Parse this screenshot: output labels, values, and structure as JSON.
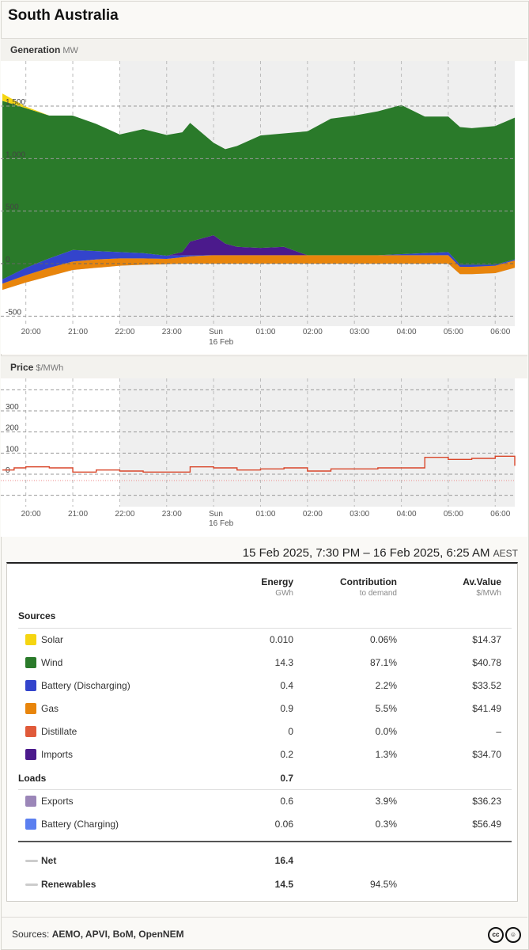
{
  "region_title": "South Australia",
  "generation": {
    "label": "Generation",
    "unit": "MW"
  },
  "price": {
    "label": "Price",
    "unit": "$/MWh"
  },
  "time_labels": [
    "20:00",
    "21:00",
    "22:00",
    "23:00",
    "Sun",
    "01:00",
    "02:00",
    "03:00",
    "04:00",
    "05:00",
    "06:00"
  ],
  "day_label": "16 Feb",
  "date_range": "15 Feb 2025, 7:30 PM – 16 Feb 2025, 6:25 AM",
  "timezone": "AEST",
  "table": {
    "col_energy": "Energy",
    "col_energy_unit": "GWh",
    "col_contrib": "Contribution",
    "col_contrib_unit": "to demand",
    "col_value": "Av.Value",
    "col_value_unit": "$/MWh",
    "sources_label": "Sources",
    "sources": [
      {
        "name": "Solar",
        "energy": "0.010",
        "contribution": "0.06%",
        "value": "$14.37",
        "color": "#f5d511"
      },
      {
        "name": "Wind",
        "energy": "14.3",
        "contribution": "87.1%",
        "value": "$40.78",
        "color": "#2a7a2a"
      },
      {
        "name": "Battery (Discharging)",
        "energy": "0.4",
        "contribution": "2.2%",
        "value": "$33.52",
        "color": "#3344cc"
      },
      {
        "name": "Gas",
        "energy": "0.9",
        "contribution": "5.5%",
        "value": "$41.49",
        "color": "#e8850c"
      },
      {
        "name": "Distillate",
        "energy": "0",
        "contribution": "0.0%",
        "value": "–",
        "color": "#e05a3a"
      },
      {
        "name": "Imports",
        "energy": "0.2",
        "contribution": "1.3%",
        "value": "$34.70",
        "color": "#4b1a8c"
      }
    ],
    "loads_label": "Loads",
    "loads_total": "0.7",
    "loads": [
      {
        "name": "Exports",
        "energy": "0.6",
        "contribution": "3.9%",
        "value": "$36.23",
        "color": "#9b86b8"
      },
      {
        "name": "Battery (Charging)",
        "energy": "0.06",
        "contribution": "0.3%",
        "value": "$56.49",
        "color": "#5b7ff0"
      }
    ],
    "net_label": "Net",
    "net_value": "16.4",
    "renew_label": "Renewables",
    "renew_value": "14.5",
    "renew_contrib": "94.5%"
  },
  "footer": {
    "prefix": "Sources:",
    "sources": "AEMO, APVI, BoM, OpenNEM",
    "cc_icon": "cc",
    "by_icon": "person"
  },
  "chart_data": [
    {
      "type": "area",
      "title": "Generation",
      "ylabel": "MW",
      "ylim": [
        -500,
        1500
      ],
      "y_ticks": [
        -500,
        0,
        500,
        "1,000",
        "1,500"
      ],
      "x_ticks": [
        "20:00",
        "21:00",
        "22:00",
        "23:00",
        "Sun 16 Feb",
        "01:00",
        "02:00",
        "03:00",
        "04:00",
        "05:00",
        "06:00"
      ],
      "x": [
        "19:30",
        "20:00",
        "20:30",
        "21:00",
        "21:30",
        "22:00",
        "22:30",
        "23:00",
        "23:20",
        "23:30",
        "00:00",
        "00:15",
        "00:30",
        "01:00",
        "01:30",
        "02:00",
        "02:30",
        "03:00",
        "03:30",
        "04:00",
        "04:30",
        "05:00",
        "05:15",
        "05:30",
        "06:00",
        "06:25"
      ],
      "series": [
        {
          "name": "Solar",
          "color": "#f5d511",
          "values": [
            70,
            15,
            0,
            0,
            0,
            0,
            0,
            0,
            0,
            0,
            0,
            0,
            0,
            0,
            0,
            0,
            0,
            0,
            0,
            0,
            0,
            0,
            0,
            0,
            0,
            0
          ]
        },
        {
          "name": "Wind",
          "color": "#2a7a2a",
          "values": [
            1700,
            1520,
            1360,
            1280,
            1210,
            1120,
            1180,
            1150,
            1140,
            1130,
            880,
            900,
            960,
            1070,
            1080,
            1180,
            1300,
            1330,
            1370,
            1420,
            1300,
            1290,
            1310,
            1300,
            1320,
            1350
          ]
        },
        {
          "name": "Battery (Discharging)",
          "color": "#3344cc",
          "values": [
            40,
            70,
            90,
            110,
            80,
            60,
            50,
            30,
            20,
            10,
            0,
            0,
            0,
            0,
            0,
            0,
            0,
            0,
            0,
            10,
            20,
            30,
            20,
            20,
            10,
            10
          ]
        },
        {
          "name": "Gas",
          "color": "#e8850c",
          "values": [
            60,
            70,
            80,
            80,
            80,
            70,
            60,
            50,
            60,
            70,
            80,
            80,
            80,
            80,
            80,
            80,
            80,
            80,
            80,
            80,
            80,
            80,
            70,
            70,
            70,
            70
          ]
        },
        {
          "name": "Imports",
          "color": "#4b1a8c",
          "values": [
            0,
            0,
            0,
            0,
            0,
            0,
            0,
            0,
            30,
            130,
            190,
            110,
            80,
            70,
            80,
            0,
            0,
            0,
            0,
            0,
            0,
            0,
            0,
            0,
            0,
            0
          ]
        },
        {
          "name": "Exports",
          "color": "#9b86b8",
          "values": [
            -250,
            -180,
            -120,
            -60,
            -40,
            -20,
            -10,
            -5,
            0,
            0,
            0,
            0,
            0,
            0,
            0,
            0,
            0,
            0,
            0,
            0,
            0,
            0,
            -100,
            -100,
            -90,
            -40
          ]
        }
      ]
    },
    {
      "type": "line",
      "title": "Price",
      "ylabel": "$/MWh",
      "ylim": [
        -150,
        400
      ],
      "y_ticks": [
        0,
        100,
        200,
        300
      ],
      "x_ticks": [
        "20:00",
        "21:00",
        "22:00",
        "23:00",
        "Sun 16 Feb",
        "01:00",
        "02:00",
        "03:00",
        "04:00",
        "05:00",
        "06:00"
      ],
      "x": [
        "19:30",
        "19:45",
        "20:00",
        "20:30",
        "21:00",
        "21:30",
        "22:00",
        "22:30",
        "23:00",
        "23:30",
        "00:00",
        "00:30",
        "01:00",
        "01:30",
        "02:00",
        "02:30",
        "03:00",
        "03:30",
        "04:00",
        "04:30",
        "05:00",
        "05:30",
        "06:00",
        "06:25"
      ],
      "series": [
        {
          "name": "Price",
          "color": "#d9472b",
          "values": [
            20,
            30,
            35,
            30,
            10,
            20,
            15,
            10,
            10,
            35,
            30,
            20,
            25,
            30,
            15,
            25,
            25,
            30,
            30,
            80,
            70,
            75,
            85,
            40
          ]
        }
      ]
    }
  ]
}
